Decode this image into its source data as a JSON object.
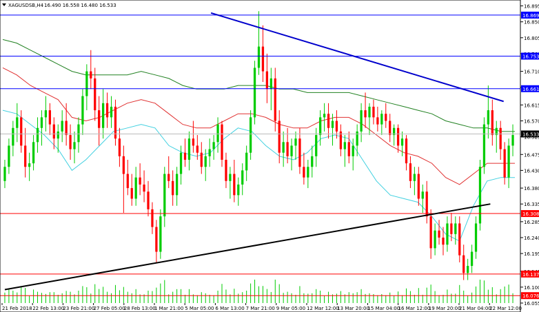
{
  "header": {
    "symbol": "XAGUSDSB,H4",
    "ohlc": "16.490 16.558 16.480 16.533"
  },
  "chart_data": {
    "type": "candlestick",
    "ylim": [
      16.055,
      16.9
    ],
    "y_ticks": [
      "16.895",
      "16.850",
      "16.805",
      "16.760",
      "16.710",
      "16.665",
      "16.615",
      "16.570",
      "16.525",
      "16.475",
      "16.430",
      "16.380",
      "16.335",
      "16.285",
      "16.240",
      "16.195",
      "16.145",
      "16.100",
      "16.055"
    ],
    "x_labels": [
      "21 Feb 2018",
      "22 Feb 13:00",
      "23 Feb 21:00",
      "27 Feb 05:00",
      "28 Feb 13:00",
      "1 Mar 21:00",
      "5 Mar 05:00",
      "6 Mar 13:00",
      "7 Mar 21:00",
      "9 Mar 05:00",
      "12 Mar 12:00",
      "13 Mar 20:00",
      "15 Mar 04:00",
      "16 Mar 12:00",
      "19 Mar 20:00",
      "21 Mar 04:00",
      "22 Mar 12:00"
    ],
    "level_lines": [
      {
        "value": 16.869,
        "label": "16.869",
        "color": "#0000ff"
      },
      {
        "value": 16.753,
        "label": "16.753",
        "color": "#0000ff"
      },
      {
        "value": 16.661,
        "label": "16.661",
        "color": "#0000ff"
      },
      {
        "value": 16.308,
        "label": "16.308",
        "color": "#ff0000"
      },
      {
        "value": 16.137,
        "label": "16.137",
        "color": "#ff0000"
      },
      {
        "value": 16.076,
        "label": "16.076",
        "color": "#ff0000"
      }
    ],
    "current_price": {
      "value": 16.533,
      "label": "16.533",
      "color": "#000000"
    },
    "bull_color": "#00cc00",
    "bear_color": "#ff0000",
    "trendlines": [
      {
        "name": "resistance",
        "color": "#0000cc",
        "points": [
          [
            62,
            16.875
          ],
          [
            150,
            16.625
          ]
        ]
      },
      {
        "name": "support",
        "color": "#000000",
        "points": [
          [
            0,
            16.093
          ],
          [
            146,
            16.335
          ]
        ]
      }
    ],
    "moving_averages": [
      {
        "name": "ma-fast",
        "color": "#40d0e0",
        "values": [
          16.6,
          16.59,
          16.56,
          16.53,
          16.49,
          16.43,
          16.46,
          16.5,
          16.54,
          16.55,
          16.56,
          16.55,
          16.5,
          16.48,
          16.47,
          16.48,
          16.52,
          16.55,
          16.54,
          16.5,
          16.47,
          16.46,
          16.48,
          16.52,
          16.53,
          16.52,
          16.46,
          16.4,
          16.36,
          16.35,
          16.34,
          16.3,
          16.25,
          16.23,
          16.33,
          16.4,
          16.41,
          16.41
        ]
      },
      {
        "name": "ma-mid",
        "color": "#e03030",
        "values": [
          16.72,
          16.7,
          16.67,
          16.65,
          16.63,
          16.58,
          16.57,
          16.58,
          16.6,
          16.62,
          16.63,
          16.62,
          16.59,
          16.56,
          16.55,
          16.55,
          16.57,
          16.59,
          16.59,
          16.58,
          16.56,
          16.55,
          16.55,
          16.57,
          16.58,
          16.58,
          16.56,
          16.53,
          16.5,
          16.48,
          16.47,
          16.45,
          16.41,
          16.39,
          16.42,
          16.45,
          16.45,
          16.45
        ]
      },
      {
        "name": "ma-slow",
        "color": "#208020",
        "values": [
          16.8,
          16.79,
          16.77,
          16.75,
          16.73,
          16.71,
          16.7,
          16.7,
          16.7,
          16.7,
          16.71,
          16.7,
          16.69,
          16.67,
          16.66,
          16.66,
          16.66,
          16.67,
          16.67,
          16.67,
          16.66,
          16.66,
          16.65,
          16.65,
          16.65,
          16.65,
          16.64,
          16.63,
          16.62,
          16.61,
          16.6,
          16.59,
          16.57,
          16.56,
          16.55,
          16.55,
          16.54,
          16.54
        ]
      }
    ],
    "candles": [
      [
        16.4,
        16.46,
        16.38,
        16.44
      ],
      [
        16.44,
        16.52,
        16.42,
        16.5
      ],
      [
        16.5,
        16.57,
        16.47,
        16.55
      ],
      [
        16.55,
        16.62,
        16.51,
        16.58
      ],
      [
        16.58,
        16.6,
        16.48,
        16.5
      ],
      [
        16.5,
        16.55,
        16.41,
        16.44
      ],
      [
        16.44,
        16.48,
        16.4,
        16.45
      ],
      [
        16.45,
        16.53,
        16.43,
        16.51
      ],
      [
        16.51,
        16.58,
        16.48,
        16.55
      ],
      [
        16.55,
        16.6,
        16.5,
        16.58
      ],
      [
        16.58,
        16.64,
        16.54,
        16.6
      ],
      [
        16.6,
        16.62,
        16.53,
        16.56
      ],
      [
        16.56,
        16.58,
        16.49,
        16.52
      ],
      [
        16.52,
        16.56,
        16.48,
        16.54
      ],
      [
        16.54,
        16.6,
        16.51,
        16.57
      ],
      [
        16.57,
        16.62,
        16.5,
        16.53
      ],
      [
        16.53,
        16.56,
        16.46,
        16.49
      ],
      [
        16.49,
        16.54,
        16.45,
        16.51
      ],
      [
        16.51,
        16.58,
        16.48,
        16.56
      ],
      [
        16.56,
        16.66,
        16.53,
        16.64
      ],
      [
        16.64,
        16.73,
        16.6,
        16.71
      ],
      [
        16.71,
        16.77,
        16.66,
        16.69
      ],
      [
        16.69,
        16.72,
        16.57,
        16.6
      ],
      [
        16.6,
        16.64,
        16.5,
        16.55
      ],
      [
        16.55,
        16.66,
        16.52,
        16.62
      ],
      [
        16.62,
        16.65,
        16.55,
        16.58
      ],
      [
        16.58,
        16.64,
        16.55,
        16.61
      ],
      [
        16.61,
        16.63,
        16.5,
        16.52
      ],
      [
        16.52,
        16.55,
        16.44,
        16.47
      ],
      [
        16.47,
        16.5,
        16.31,
        16.42
      ],
      [
        16.42,
        16.46,
        16.36,
        16.38
      ],
      [
        16.38,
        16.42,
        16.33,
        16.35
      ],
      [
        16.35,
        16.44,
        16.33,
        16.41
      ],
      [
        16.41,
        16.45,
        16.36,
        16.39
      ],
      [
        16.39,
        16.43,
        16.34,
        16.37
      ],
      [
        16.37,
        16.4,
        16.3,
        16.32
      ],
      [
        16.32,
        16.34,
        16.25,
        16.27
      ],
      [
        16.27,
        16.29,
        16.17,
        16.2
      ],
      [
        16.2,
        16.32,
        16.18,
        16.3
      ],
      [
        16.3,
        16.44,
        16.27,
        16.42
      ],
      [
        16.42,
        16.47,
        16.38,
        16.4
      ],
      [
        16.4,
        16.43,
        16.33,
        16.36
      ],
      [
        16.36,
        16.44,
        16.33,
        16.42
      ],
      [
        16.42,
        16.5,
        16.39,
        16.48
      ],
      [
        16.48,
        16.52,
        16.44,
        16.46
      ],
      [
        16.46,
        16.54,
        16.43,
        16.52
      ],
      [
        16.52,
        16.57,
        16.48,
        16.5
      ],
      [
        16.5,
        16.53,
        16.46,
        16.48
      ],
      [
        16.48,
        16.51,
        16.42,
        16.44
      ],
      [
        16.44,
        16.49,
        16.4,
        16.47
      ],
      [
        16.47,
        16.52,
        16.44,
        16.49
      ],
      [
        16.49,
        16.53,
        16.46,
        16.51
      ],
      [
        16.51,
        16.58,
        16.48,
        16.56
      ],
      [
        16.56,
        16.57,
        16.44,
        16.46
      ],
      [
        16.46,
        16.48,
        16.38,
        16.4
      ],
      [
        16.4,
        16.44,
        16.35,
        16.42
      ],
      [
        16.42,
        16.46,
        16.34,
        16.36
      ],
      [
        16.36,
        16.41,
        16.33,
        16.39
      ],
      [
        16.39,
        16.45,
        16.36,
        16.43
      ],
      [
        16.43,
        16.5,
        16.4,
        16.48
      ],
      [
        16.48,
        16.6,
        16.46,
        16.58
      ],
      [
        16.58,
        16.74,
        16.56,
        16.72
      ],
      [
        16.72,
        16.88,
        16.7,
        16.78
      ],
      [
        16.78,
        16.84,
        16.68,
        16.71
      ],
      [
        16.71,
        16.76,
        16.62,
        16.66
      ],
      [
        16.66,
        16.72,
        16.6,
        16.69
      ],
      [
        16.69,
        16.72,
        16.54,
        16.57
      ],
      [
        16.57,
        16.6,
        16.45,
        16.48
      ],
      [
        16.48,
        16.54,
        16.44,
        16.51
      ],
      [
        16.51,
        16.55,
        16.45,
        16.47
      ],
      [
        16.47,
        16.52,
        16.43,
        16.5
      ],
      [
        16.5,
        16.54,
        16.46,
        16.52
      ],
      [
        16.52,
        16.55,
        16.42,
        16.44
      ],
      [
        16.44,
        16.48,
        16.39,
        16.41
      ],
      [
        16.41,
        16.46,
        16.38,
        16.44
      ],
      [
        16.44,
        16.5,
        16.41,
        16.47
      ],
      [
        16.47,
        16.55,
        16.44,
        16.53
      ],
      [
        16.53,
        16.6,
        16.5,
        16.58
      ],
      [
        16.58,
        16.62,
        16.54,
        16.59
      ],
      [
        16.59,
        16.62,
        16.52,
        16.55
      ],
      [
        16.55,
        16.59,
        16.5,
        16.57
      ],
      [
        16.57,
        16.6,
        16.52,
        16.54
      ],
      [
        16.54,
        16.56,
        16.47,
        16.49
      ],
      [
        16.49,
        16.53,
        16.44,
        16.51
      ],
      [
        16.51,
        16.54,
        16.45,
        16.47
      ],
      [
        16.47,
        16.52,
        16.43,
        16.5
      ],
      [
        16.5,
        16.56,
        16.47,
        16.54
      ],
      [
        16.54,
        16.62,
        16.51,
        16.6
      ],
      [
        16.6,
        16.65,
        16.55,
        16.58
      ],
      [
        16.58,
        16.62,
        16.53,
        16.61
      ],
      [
        16.61,
        16.63,
        16.56,
        16.58
      ],
      [
        16.58,
        16.61,
        16.54,
        16.56
      ],
      [
        16.56,
        16.6,
        16.53,
        16.59
      ],
      [
        16.59,
        16.62,
        16.55,
        16.57
      ],
      [
        16.57,
        16.59,
        16.51,
        16.53
      ],
      [
        16.53,
        16.56,
        16.5,
        16.55
      ],
      [
        16.55,
        16.56,
        16.48,
        16.5
      ],
      [
        16.5,
        16.54,
        16.47,
        16.52
      ],
      [
        16.52,
        16.53,
        16.43,
        16.45
      ],
      [
        16.45,
        16.47,
        16.38,
        16.4
      ],
      [
        16.4,
        16.44,
        16.36,
        16.42
      ],
      [
        16.42,
        16.44,
        16.33,
        16.35
      ],
      [
        16.35,
        16.39,
        16.31,
        16.37
      ],
      [
        16.37,
        16.4,
        16.28,
        16.3
      ],
      [
        16.3,
        16.32,
        16.18,
        16.21
      ],
      [
        16.21,
        16.28,
        16.19,
        16.26
      ],
      [
        16.26,
        16.29,
        16.22,
        16.24
      ],
      [
        16.24,
        16.27,
        16.19,
        16.22
      ],
      [
        16.22,
        16.3,
        16.2,
        16.28
      ],
      [
        16.28,
        16.31,
        16.23,
        16.25
      ],
      [
        16.25,
        16.3,
        16.22,
        16.28
      ],
      [
        16.28,
        16.3,
        16.17,
        16.19
      ],
      [
        16.19,
        16.22,
        16.12,
        16.14
      ],
      [
        16.14,
        16.18,
        16.12,
        16.16
      ],
      [
        16.16,
        16.22,
        16.14,
        16.2
      ],
      [
        16.2,
        16.3,
        16.18,
        16.28
      ],
      [
        16.28,
        16.46,
        16.26,
        16.44
      ],
      [
        16.44,
        16.58,
        16.42,
        16.56
      ],
      [
        16.56,
        16.67,
        16.52,
        16.6
      ],
      [
        16.6,
        16.63,
        16.5,
        16.53
      ],
      [
        16.53,
        16.57,
        16.48,
        16.55
      ],
      [
        16.55,
        16.57,
        16.46,
        16.49
      ],
      [
        16.49,
        16.51,
        16.39,
        16.41
      ],
      [
        16.41,
        16.52,
        16.38,
        16.5
      ],
      [
        16.5,
        16.56,
        16.47,
        16.53
      ]
    ]
  }
}
